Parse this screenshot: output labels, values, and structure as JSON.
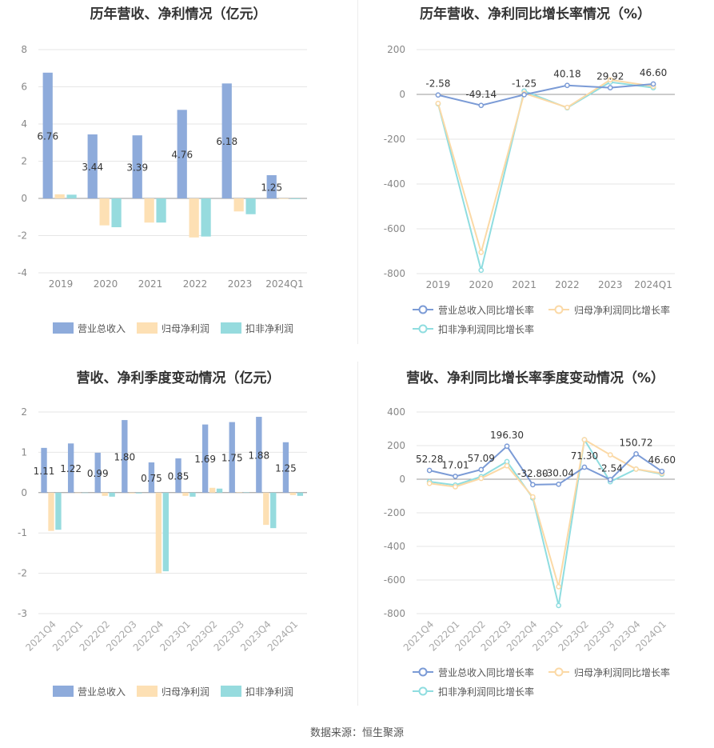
{
  "source": "数据来源：恒生聚源",
  "colors": {
    "revenue": "#8eabdb",
    "parent": "#fde0b4",
    "deducted": "#96dbde",
    "grid": "#e6e6e6",
    "axis": "#888888"
  },
  "chart_data": [
    {
      "type": "bar",
      "title": "历年营收、净利情况（亿元）",
      "categories": [
        "2019",
        "2020",
        "2021",
        "2022",
        "2023",
        "2024Q1"
      ],
      "ylim": [
        -4,
        8
      ],
      "yticks": [
        -4,
        -2,
        0,
        2,
        4,
        6,
        8
      ],
      "series": [
        {
          "name": "营业总收入",
          "values": [
            6.76,
            3.44,
            3.39,
            4.76,
            6.18,
            1.25
          ],
          "labels": [
            "6.76",
            "3.44",
            "3.39",
            "4.76",
            "6.18",
            "1.25"
          ]
        },
        {
          "name": "归母净利润",
          "values": [
            0.22,
            -1.45,
            -1.3,
            -2.1,
            -0.7,
            -0.03
          ]
        },
        {
          "name": "扣非净利润",
          "values": [
            0.2,
            -1.55,
            -1.3,
            -2.05,
            -0.85,
            -0.04
          ]
        }
      ],
      "legend": "bottom"
    },
    {
      "type": "line",
      "title": "历年营收、净利同比增长率情况（%）",
      "categories": [
        "2019",
        "2020",
        "2021",
        "2022",
        "2023",
        "2024Q1"
      ],
      "ylim": [
        -800,
        200
      ],
      "yticks": [
        -800,
        -600,
        -400,
        -200,
        0,
        200
      ],
      "series": [
        {
          "name": "营业总收入同比增长率",
          "values": [
            -2.58,
            -49.14,
            -1.25,
            40.18,
            29.92,
            46.6
          ],
          "labels": [
            "-2.58",
            "-49.14",
            "-1.25",
            "40.18",
            "29.92",
            "46.60"
          ]
        },
        {
          "name": "归母净利润同比增长率",
          "values": [
            -40,
            -705,
            5,
            -58,
            65,
            36
          ]
        },
        {
          "name": "扣非净利润同比增长率",
          "values": [
            -42,
            -785,
            15,
            -60,
            55,
            30
          ]
        }
      ],
      "legend": "bottom"
    },
    {
      "type": "bar",
      "title": "营收、净利季度变动情况（亿元）",
      "categories": [
        "2021Q4",
        "2022Q1",
        "2022Q2",
        "2022Q3",
        "2022Q4",
        "2023Q1",
        "2023Q2",
        "2023Q3",
        "2023Q4",
        "2024Q1"
      ],
      "ylim": [
        -3,
        2
      ],
      "yticks": [
        -3,
        -2,
        -1,
        0,
        1,
        2
      ],
      "series": [
        {
          "name": "营业总收入",
          "values": [
            1.11,
            1.22,
            0.99,
            1.8,
            0.75,
            0.85,
            1.69,
            1.75,
            1.88,
            1.25
          ],
          "labels": [
            "1.11",
            "1.22",
            "0.99",
            "1.80",
            "0.75",
            "0.85",
            "1.69",
            "1.75",
            "1.88",
            "1.25"
          ]
        },
        {
          "name": "归母净利润",
          "values": [
            -0.95,
            0,
            -0.08,
            -0.02,
            -2.0,
            -0.08,
            0.12,
            0.01,
            -0.8,
            -0.06
          ]
        },
        {
          "name": "扣非净利润",
          "values": [
            -0.92,
            0,
            -0.1,
            -0.02,
            -1.95,
            -0.1,
            0.1,
            0.01,
            -0.88,
            -0.08
          ]
        }
      ],
      "legend": "bottom"
    },
    {
      "type": "line",
      "title": "营收、净利同比增长率季度变动情况（%）",
      "categories": [
        "2021Q4",
        "2022Q1",
        "2022Q2",
        "2022Q3",
        "2022Q4",
        "2023Q1",
        "2023Q2",
        "2023Q3",
        "2023Q4",
        "2024Q1"
      ],
      "ylim": [
        -800,
        400
      ],
      "yticks": [
        -800,
        -600,
        -400,
        -200,
        0,
        200,
        400
      ],
      "series": [
        {
          "name": "营业总收入同比增长率",
          "values": [
            52.28,
            17.01,
            57.09,
            196.3,
            -32.8,
            -30.04,
            71.3,
            -2.54,
            150.72,
            46.6
          ],
          "labels": [
            "52.28",
            "17.01",
            "57.09",
            "196.30",
            "-32.80",
            "-30.04",
            "71.30",
            "-2.54",
            "150.72",
            "46.60"
          ]
        },
        {
          "name": "归母净利润同比增长率",
          "values": [
            -25,
            -45,
            5,
            80,
            -105,
            -640,
            235,
            145,
            60,
            35
          ]
        },
        {
          "name": "扣非净利润同比增长率",
          "values": [
            -15,
            -35,
            15,
            105,
            -112,
            -752,
            235,
            -15,
            60,
            30
          ]
        }
      ],
      "legend": "bottom"
    }
  ]
}
